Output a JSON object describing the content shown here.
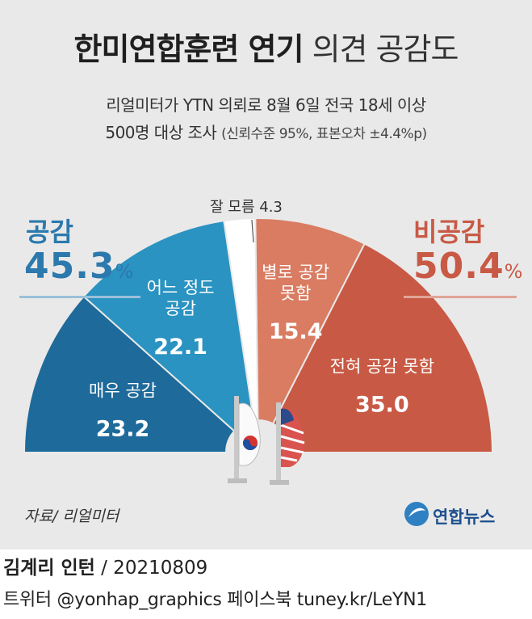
{
  "title_bold": "한미연합훈련 연기",
  "title_light": "의견 공감도",
  "subtitle_line1": "리얼미터가 YTN 의뢰로 8월 6일 전국 18세 이상",
  "subtitle_line2_main": "500명 대상 조사",
  "subtitle_line2_note": "(신뢰수준 95%, 표본오차 ±4.4%p)",
  "left_group": {
    "label": "공감",
    "value": "45.3",
    "unit": "%"
  },
  "right_group": {
    "label": "비공감",
    "value": "50.4",
    "unit": "%"
  },
  "colors": {
    "strongly_agree": "#1e6a9a",
    "somewhat_agree": "#2a93c1",
    "dont_know": "#ffffff",
    "somewhat_disagree": "#d97c62",
    "strongly_disagree": "#c85a45",
    "background": "#e9e9e9"
  },
  "chart_data": {
    "type": "pie",
    "shape": "semicircle",
    "title": "한미연합훈련 연기 의견 공감도",
    "slices": [
      {
        "label": "매우 공감",
        "value": 23.2,
        "display": "23.2",
        "color": "#1e6a9a"
      },
      {
        "label": "어느 정도 공감",
        "value": 22.1,
        "display": "22.1",
        "color": "#2a93c1"
      },
      {
        "label": "잘 모름",
        "value": 4.3,
        "display": "4.3",
        "color": "#ffffff"
      },
      {
        "label": "별로 공감 못함",
        "value": 15.4,
        "display": "15.4",
        "color": "#d97c62"
      },
      {
        "label": "전혀 공감 못함",
        "value": 35.0,
        "display": "35.0",
        "color": "#c85a45"
      }
    ],
    "groups": [
      {
        "label": "공감",
        "value": 45.3
      },
      {
        "label": "비공감",
        "value": 50.4
      }
    ]
  },
  "source": "자료/ 리얼미터",
  "logo_text": "연합뉴스",
  "byline_name": "김계리 인턴",
  "byline_date": "/ 20210809",
  "credits": "트위터 @yonhap_graphics  페이스북 tuney.kr/LeYN1"
}
